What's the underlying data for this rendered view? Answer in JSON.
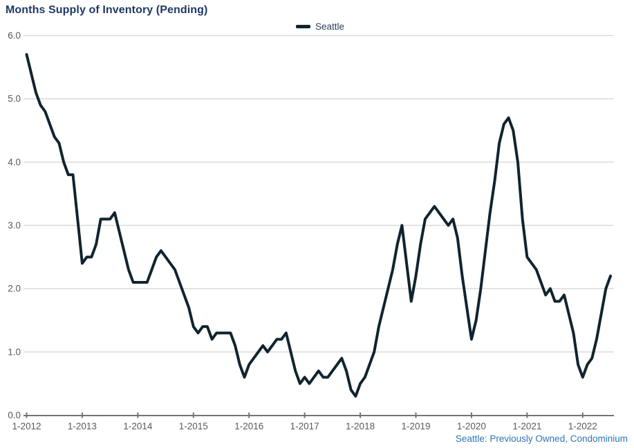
{
  "title": "Months Supply of Inventory (Pending)",
  "legend": {
    "series_label": "Seattle"
  },
  "source_note": "Seattle: Previously Owned, Condominium",
  "colors": {
    "title_text": "#1f3864",
    "legend_text": "#2c4259",
    "source_note_text": "#2e74b5",
    "axis_label_text": "#595959",
    "series_line": "#10242f",
    "gridline": "#d9d9d9",
    "axis_line": "#737373"
  },
  "chart_data": {
    "type": "line",
    "title": "Months Supply of Inventory (Pending)",
    "xlabel": "",
    "ylabel": "",
    "ylim": [
      0,
      6
    ],
    "grid": "horizontal",
    "legend_position": "top-center",
    "x_tick_labels": [
      "1-2012",
      "1-2013",
      "1-2014",
      "1-2015",
      "1-2016",
      "1-2017",
      "1-2018",
      "1-2019",
      "1-2020",
      "1-2021",
      "1-2022"
    ],
    "y_tick_labels": [
      "6.0",
      "5.0",
      "4.0",
      "3.0",
      "2.0",
      "1.0",
      "0.0"
    ],
    "x_start_month": "1-2012",
    "x_end_month": "7-2022",
    "x_frequency": "monthly",
    "series": [
      {
        "name": "Seattle",
        "values": [
          5.7,
          5.4,
          5.1,
          4.9,
          4.8,
          4.6,
          4.4,
          4.3,
          4.0,
          3.8,
          3.8,
          3.1,
          2.4,
          2.5,
          2.5,
          2.7,
          3.1,
          3.1,
          3.1,
          3.2,
          2.9,
          2.6,
          2.3,
          2.1,
          2.1,
          2.1,
          2.1,
          2.3,
          2.5,
          2.6,
          2.5,
          2.4,
          2.3,
          2.1,
          1.9,
          1.7,
          1.4,
          1.3,
          1.4,
          1.4,
          1.2,
          1.3,
          1.3,
          1.3,
          1.3,
          1.1,
          0.8,
          0.6,
          0.8,
          0.9,
          1.0,
          1.1,
          1.0,
          1.1,
          1.2,
          1.2,
          1.3,
          1.0,
          0.7,
          0.5,
          0.6,
          0.5,
          0.6,
          0.7,
          0.6,
          0.6,
          0.7,
          0.8,
          0.9,
          0.7,
          0.4,
          0.3,
          0.5,
          0.6,
          0.8,
          1.0,
          1.4,
          1.7,
          2.0,
          2.3,
          2.7,
          3.0,
          2.4,
          1.8,
          2.2,
          2.7,
          3.1,
          3.2,
          3.3,
          3.2,
          3.1,
          3.0,
          3.1,
          2.8,
          2.2,
          1.7,
          1.2,
          1.5,
          2.0,
          2.6,
          3.2,
          3.7,
          4.3,
          4.6,
          4.7,
          4.5,
          4.0,
          3.1,
          2.5,
          2.4,
          2.3,
          2.1,
          1.9,
          2.0,
          1.8,
          1.8,
          1.9,
          1.6,
          1.3,
          0.8,
          0.6,
          0.8,
          0.9,
          1.2,
          1.6,
          2.0,
          2.2
        ]
      }
    ]
  }
}
